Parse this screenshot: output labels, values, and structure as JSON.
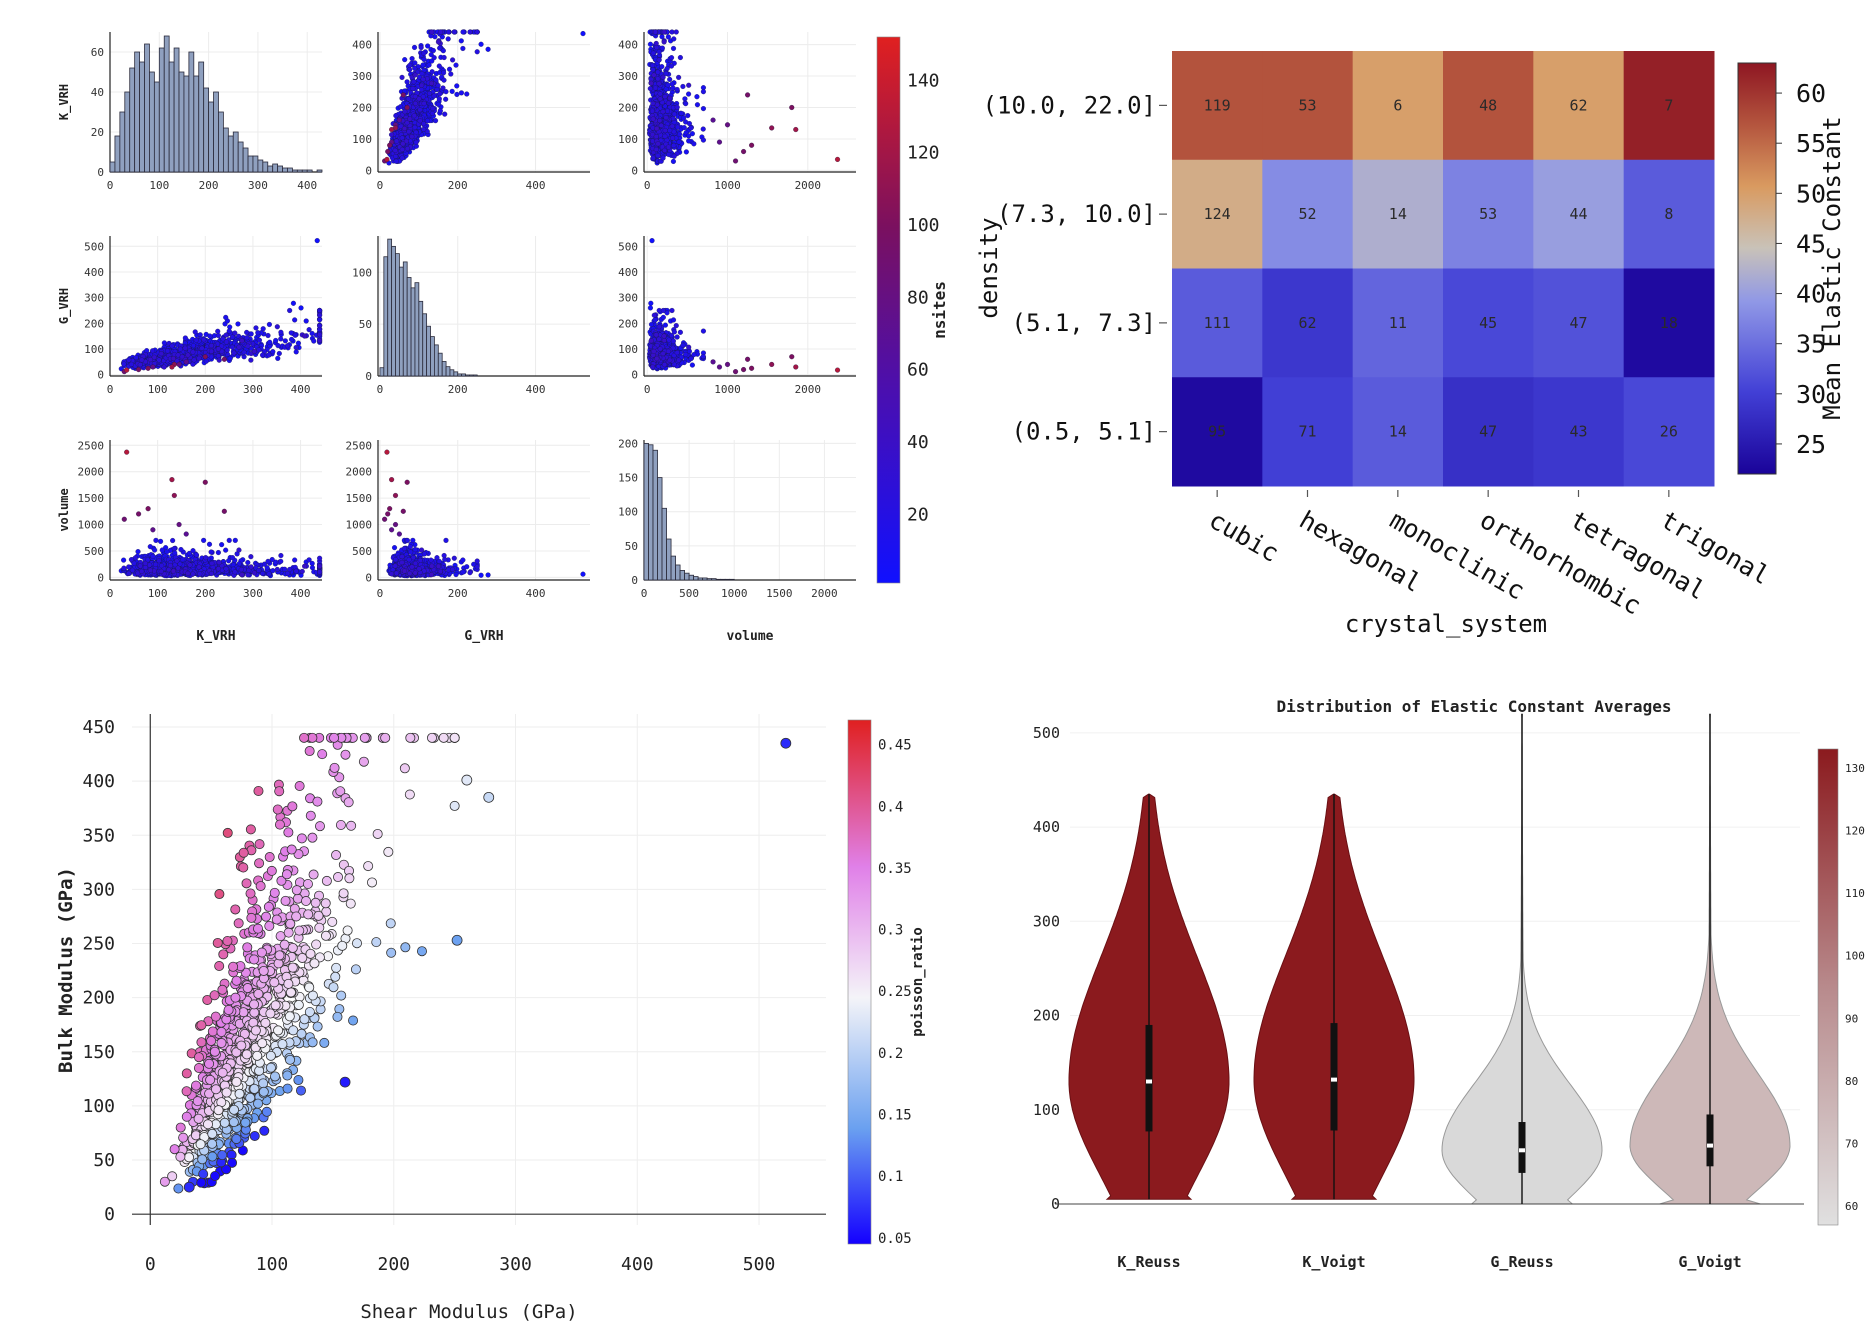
{
  "chart_data": [
    {
      "type": "scatter_matrix",
      "variables": [
        "K_VRH",
        "G_VRH",
        "volume"
      ],
      "color_variable": "nsites",
      "colorbar": {
        "label": "nsites",
        "ticks": [
          20,
          40,
          60,
          80,
          100,
          120,
          140
        ],
        "range": [
          1,
          152
        ]
      },
      "panels": [
        {
          "row": 0,
          "col": 0,
          "type": "histogram",
          "ylabel": "K_VRH",
          "x_ticks": [
            0,
            100,
            200,
            300,
            400
          ],
          "y_ticks": [
            0,
            20,
            40,
            60
          ],
          "bin_width": 10,
          "x_start": 0,
          "counts": [
            5,
            18,
            30,
            40,
            52,
            60,
            55,
            64,
            50,
            45,
            62,
            68,
            55,
            62,
            50,
            48,
            60,
            48,
            55,
            42,
            35,
            40,
            30,
            22,
            18,
            20,
            15,
            12,
            8,
            8,
            6,
            5,
            3,
            4,
            3,
            2,
            2,
            1,
            1,
            1,
            1,
            0,
            1
          ]
        },
        {
          "row": 0,
          "col": 1,
          "type": "scatter",
          "x": "G_VRH",
          "y": "K_VRH",
          "x_ticks": [
            0,
            200,
            400
          ],
          "y_ticks": [
            0,
            100,
            200,
            300,
            400
          ]
        },
        {
          "row": 0,
          "col": 2,
          "type": "scatter",
          "x": "volume",
          "y": "K_VRH",
          "x_ticks": [
            0,
            1000,
            2000
          ],
          "y_ticks": [
            0,
            100,
            200,
            300,
            400
          ]
        },
        {
          "row": 1,
          "col": 0,
          "type": "scatter",
          "x": "K_VRH",
          "y": "G_VRH",
          "ylabel": "G_VRH",
          "x_ticks": [
            0,
            100,
            200,
            300,
            400
          ],
          "y_ticks": [
            0,
            100,
            200,
            300,
            400,
            500
          ]
        },
        {
          "row": 1,
          "col": 1,
          "type": "histogram",
          "x_ticks": [
            0,
            200,
            400
          ],
          "y_ticks": [
            0,
            50,
            100
          ],
          "bin_width": 10,
          "x_start": 0,
          "counts": [
            8,
            115,
            132,
            125,
            118,
            105,
            110,
            95,
            85,
            90,
            72,
            60,
            48,
            38,
            30,
            22,
            14,
            9,
            6,
            4,
            2,
            2,
            1,
            1,
            1
          ]
        },
        {
          "row": 1,
          "col": 2,
          "type": "scatter",
          "x": "volume",
          "y": "G_VRH",
          "x_ticks": [
            0,
            1000,
            2000
          ],
          "y_ticks": [
            0,
            100,
            200,
            300,
            400,
            500
          ]
        },
        {
          "row": 2,
          "col": 0,
          "type": "scatter",
          "x": "K_VRH",
          "y": "volume",
          "ylabel": "volume",
          "xlabel": "K_VRH",
          "x_ticks": [
            0,
            100,
            200,
            300,
            400
          ],
          "y_ticks": [
            0,
            500,
            1000,
            1500,
            2000,
            2500
          ]
        },
        {
          "row": 2,
          "col": 1,
          "type": "scatter",
          "x": "G_VRH",
          "y": "volume",
          "xlabel": "G_VRH",
          "x_ticks": [
            0,
            200,
            400
          ],
          "y_ticks": [
            0,
            500,
            1000,
            1500,
            2000,
            2500
          ]
        },
        {
          "row": 2,
          "col": 2,
          "type": "histogram",
          "xlabel": "volume",
          "x_ticks": [
            0,
            500,
            1000,
            1500,
            2000
          ],
          "y_ticks": [
            0,
            50,
            100,
            150,
            200
          ],
          "bin_width": 50,
          "x_start": 0,
          "counts": [
            200,
            198,
            190,
            150,
            105,
            60,
            35,
            22,
            14,
            10,
            7,
            5,
            3,
            3,
            2,
            2,
            1,
            1,
            1,
            1
          ]
        }
      ]
    },
    {
      "type": "heatmap",
      "x_label": "crystal_system",
      "y_label": "density",
      "x_categories": [
        "cubic",
        "hexagonal",
        "monoclinic",
        "orthorhombic",
        "tetragonal",
        "trigonal"
      ],
      "y_categories": [
        "(10.0, 22.0]",
        "(7.3, 10.0]",
        "(5.1, 7.3]",
        "(0.5, 5.1]"
      ],
      "cell_counts": [
        [
          119,
          53,
          6,
          48,
          62,
          7
        ],
        [
          124,
          52,
          14,
          53,
          44,
          8
        ],
        [
          111,
          62,
          11,
          45,
          47,
          18
        ],
        [
          95,
          71,
          14,
          47,
          43,
          26
        ]
      ],
      "cell_means": [
        [
          57,
          57,
          50,
          57,
          50,
          62
        ],
        [
          48,
          38,
          42,
          37,
          40,
          33
        ],
        [
          33,
          29,
          34,
          31,
          32,
          23
        ],
        [
          23,
          30,
          33,
          28,
          29,
          31
        ]
      ],
      "colorbar": {
        "label": "Mean Elastic Constant",
        "ticks": [
          25,
          30,
          35,
          40,
          45,
          50,
          55,
          60
        ],
        "range": [
          22,
          63
        ]
      }
    },
    {
      "type": "scatter",
      "x_label": "Shear Modulus (GPa)",
      "y_label": "Bulk Modulus (GPa)",
      "x_ticks": [
        0,
        100,
        200,
        300,
        400,
        500
      ],
      "y_ticks": [
        0,
        50,
        100,
        150,
        200,
        250,
        300,
        350,
        400,
        450
      ],
      "x_range": [
        -15,
        555
      ],
      "y_range": [
        -10,
        462
      ],
      "colorbar": {
        "label": "poisson_ratio",
        "ticks": [
          0.05,
          0.1,
          0.15,
          0.2,
          0.25,
          0.3,
          0.35,
          0.4,
          0.45
        ],
        "range": [
          0.045,
          0.47
        ]
      },
      "highlighted_points": [
        {
          "x": 522,
          "y": 435,
          "poisson_ratio": 0.07
        },
        {
          "x": 260,
          "y": 401,
          "poisson_ratio": 0.23
        },
        {
          "x": 278,
          "y": 385,
          "poisson_ratio": 0.21
        },
        {
          "x": 252,
          "y": 253,
          "poisson_ratio": 0.14
        },
        {
          "x": 160,
          "y": 122,
          "poisson_ratio": 0.06
        },
        {
          "x": 32,
          "y": 25,
          "poisson_ratio": 0.07
        }
      ]
    },
    {
      "type": "violin",
      "title": "Distribution of Elastic Constant Averages",
      "categories": [
        "K_Reuss",
        "K_Voigt",
        "G_Reuss",
        "G_Voigt"
      ],
      "y_ticks": [
        0,
        100,
        200,
        300,
        400,
        500
      ],
      "y_range": [
        0,
        520
      ],
      "stats": [
        {
          "name": "K_Reuss",
          "min": 5,
          "q1": 77,
          "median": 130,
          "q3": 190,
          "max": 435,
          "mean": 135,
          "color": "#8b1a1e"
        },
        {
          "name": "K_Voigt",
          "min": 5,
          "q1": 78,
          "median": 132,
          "q3": 192,
          "max": 435,
          "mean": 137,
          "color": "#8b1a1e"
        },
        {
          "name": "G_Reuss",
          "min": 0,
          "q1": 33,
          "median": 57,
          "q3": 87,
          "max": 520,
          "mean": 60,
          "color": "#d9d9d9"
        },
        {
          "name": "G_Voigt",
          "min": 0,
          "q1": 40,
          "median": 62,
          "q3": 95,
          "max": 520,
          "mean": 66,
          "color": "#cdb8b8"
        }
      ],
      "colorbar": {
        "ticks": [
          60,
          70,
          80,
          90,
          100,
          110,
          120,
          130
        ],
        "range": [
          57,
          133
        ]
      }
    }
  ]
}
